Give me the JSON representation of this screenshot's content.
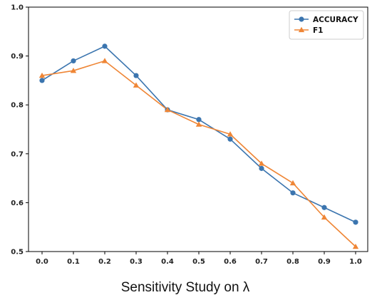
{
  "chart_data": {
    "type": "line",
    "title": "",
    "xlabel": "Sensitivity Study on λ",
    "ylabel": "",
    "x": [
      0.0,
      0.1,
      0.2,
      0.3,
      0.4,
      0.5,
      0.6,
      0.7,
      0.8,
      0.9,
      1.0
    ],
    "x_tick_labels": [
      "0.0",
      "0.1",
      "0.2",
      "0.3",
      "0.4",
      "0.5",
      "0.6",
      "0.7",
      "0.8",
      "0.9",
      "1.0"
    ],
    "ylim": [
      0.5,
      1.0
    ],
    "y_ticks": [
      0.5,
      0.6,
      0.7,
      0.8,
      0.9,
      1.0
    ],
    "y_tick_labels": [
      "0.5",
      "0.6",
      "0.7",
      "0.8",
      "0.9",
      "1.0"
    ],
    "grid": false,
    "legend_position": "top-right",
    "series": [
      {
        "name": "ACCURACY",
        "color": "#3b75af",
        "marker": "circle",
        "values": [
          0.85,
          0.89,
          0.92,
          0.86,
          0.79,
          0.77,
          0.73,
          0.67,
          0.62,
          0.59,
          0.56
        ]
      },
      {
        "name": "F1",
        "color": "#ef8636",
        "marker": "triangle",
        "values": [
          0.86,
          0.87,
          0.89,
          0.84,
          0.79,
          0.76,
          0.74,
          0.68,
          0.64,
          0.57,
          0.51
        ]
      }
    ]
  }
}
